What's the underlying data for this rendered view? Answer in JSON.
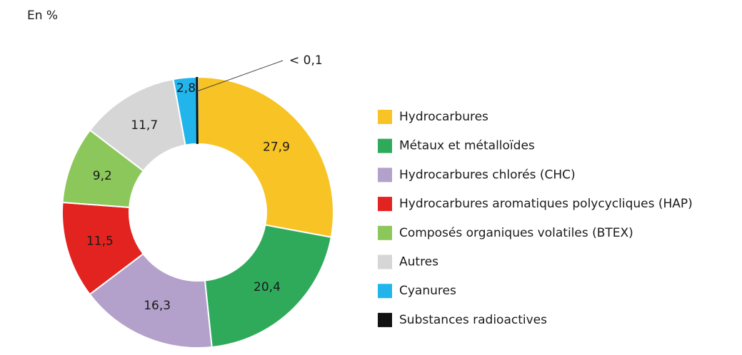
{
  "unit_label": "En %",
  "chart_data": {
    "type": "pie",
    "style": "donut",
    "start": "top, clockwise",
    "slices": [
      {
        "name": "Hydrocarbures",
        "value": 27.9,
        "label": "27,9",
        "color": "#F7C325"
      },
      {
        "name": "Métaux et métalloïdes",
        "value": 20.4,
        "label": "20,4",
        "color": "#2FAA5B"
      },
      {
        "name": "Hydrocarbures chlorés (CHC)",
        "value": 16.3,
        "label": "16,3",
        "color": "#B3A1CB"
      },
      {
        "name": "Hydrocarbures aromatiques polycycliques (HAP)",
        "value": 11.5,
        "label": "11,5",
        "color": "#E2231F"
      },
      {
        "name": "Composés organiques volatiles (BTEX)",
        "value": 9.2,
        "label": "9,2",
        "color": "#8CC75B"
      },
      {
        "name": "Autres",
        "value": 11.7,
        "label": "11,7",
        "color": "#D6D6D6"
      },
      {
        "name": "Cyanures",
        "value": 2.8,
        "label": "2,8",
        "color": "#22B5EC"
      },
      {
        "name": "Substances radioactives",
        "value": 0.1,
        "label": "< 0,1",
        "color": "#111111"
      }
    ],
    "legend_position": "right"
  }
}
